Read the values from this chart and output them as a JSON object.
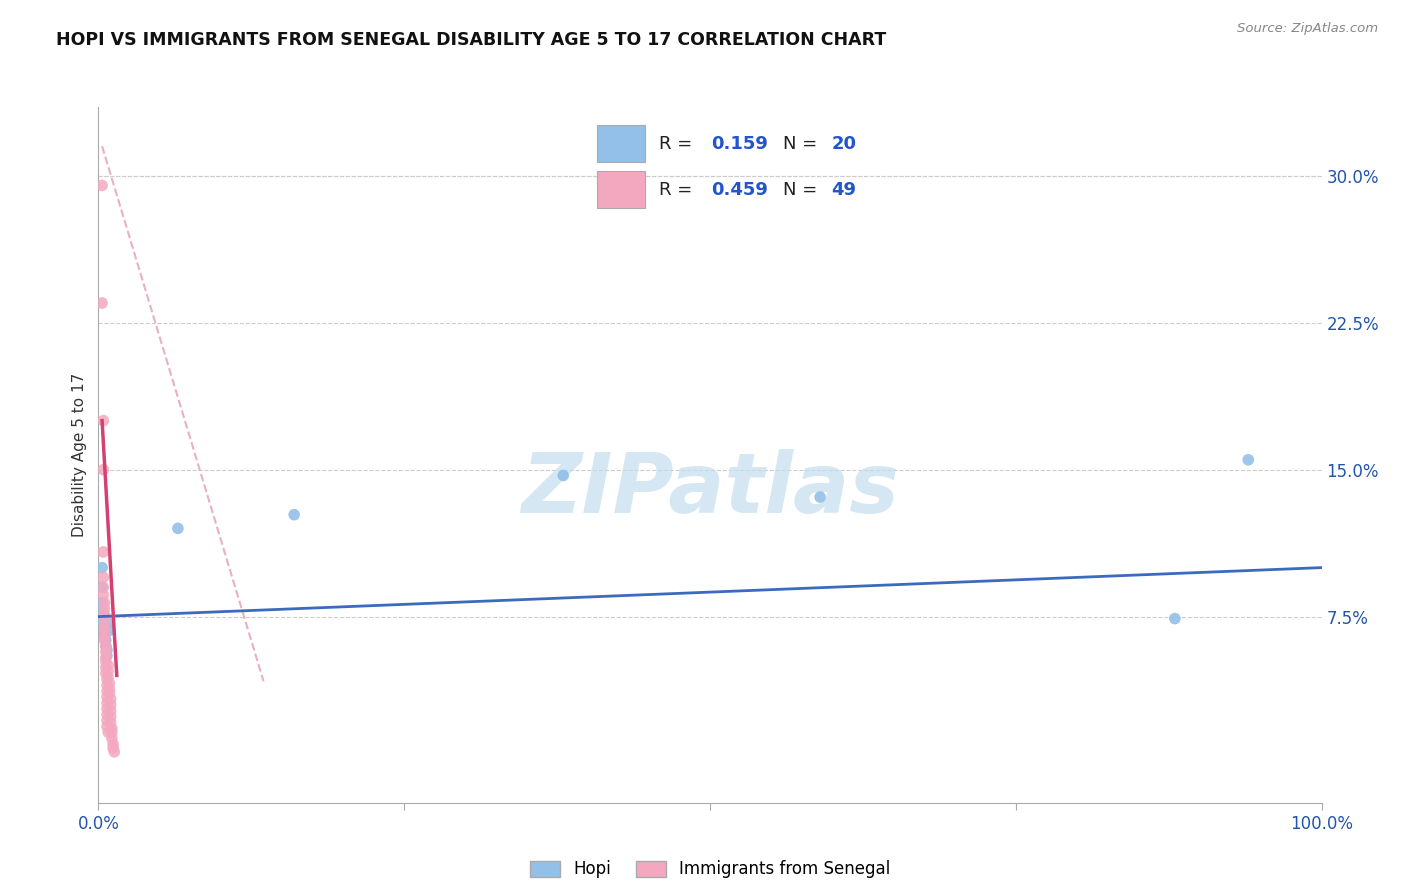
{
  "title": "HOPI VS IMMIGRANTS FROM SENEGAL DISABILITY AGE 5 TO 17 CORRELATION CHART",
  "source": "Source: ZipAtlas.com",
  "ylabel": "Disability Age 5 to 17",
  "ytick_labels": [
    "7.5%",
    "15.0%",
    "22.5%",
    "30.0%"
  ],
  "ytick_values": [
    0.075,
    0.15,
    0.225,
    0.3
  ],
  "xlim": [
    0.0,
    1.0
  ],
  "ylim": [
    -0.02,
    0.335
  ],
  "legend_hopi_R": "0.159",
  "legend_hopi_N": "20",
  "legend_senegal_R": "0.459",
  "legend_senegal_N": "49",
  "hopi_color": "#92c0e8",
  "senegal_color": "#f4a8c0",
  "hopi_line_color": "#3a6bbf",
  "senegal_line_color": "#d44070",
  "senegal_dash_color": "#e8b0c0",
  "background_color": "#ffffff",
  "grid_color": "#cccccc",
  "hopi_scatter": [
    [
      0.003,
      0.1
    ],
    [
      0.003,
      0.09
    ],
    [
      0.003,
      0.082
    ],
    [
      0.004,
      0.077
    ],
    [
      0.004,
      0.073
    ],
    [
      0.005,
      0.07
    ],
    [
      0.005,
      0.067
    ],
    [
      0.005,
      0.065
    ],
    [
      0.006,
      0.063
    ],
    [
      0.006,
      0.06
    ],
    [
      0.007,
      0.058
    ],
    [
      0.007,
      0.055
    ],
    [
      0.008,
      0.072
    ],
    [
      0.009,
      0.068
    ],
    [
      0.065,
      0.12
    ],
    [
      0.16,
      0.127
    ],
    [
      0.38,
      0.147
    ],
    [
      0.59,
      0.136
    ],
    [
      0.88,
      0.074
    ],
    [
      0.94,
      0.155
    ]
  ],
  "senegal_scatter": [
    [
      0.003,
      0.295
    ],
    [
      0.003,
      0.235
    ],
    [
      0.004,
      0.175
    ],
    [
      0.004,
      0.15
    ],
    [
      0.004,
      0.108
    ],
    [
      0.004,
      0.095
    ],
    [
      0.004,
      0.09
    ],
    [
      0.004,
      0.086
    ],
    [
      0.005,
      0.082
    ],
    [
      0.005,
      0.079
    ],
    [
      0.005,
      0.076
    ],
    [
      0.005,
      0.074
    ],
    [
      0.005,
      0.071
    ],
    [
      0.005,
      0.068
    ],
    [
      0.005,
      0.065
    ],
    [
      0.005,
      0.063
    ],
    [
      0.006,
      0.06
    ],
    [
      0.006,
      0.057
    ],
    [
      0.006,
      0.054
    ],
    [
      0.006,
      0.052
    ],
    [
      0.006,
      0.049
    ],
    [
      0.006,
      0.046
    ],
    [
      0.007,
      0.043
    ],
    [
      0.007,
      0.04
    ],
    [
      0.007,
      0.037
    ],
    [
      0.007,
      0.034
    ],
    [
      0.007,
      0.031
    ],
    [
      0.007,
      0.028
    ],
    [
      0.007,
      0.025
    ],
    [
      0.007,
      0.022
    ],
    [
      0.007,
      0.019
    ],
    [
      0.008,
      0.016
    ],
    [
      0.008,
      0.05
    ],
    [
      0.008,
      0.047
    ],
    [
      0.008,
      0.044
    ],
    [
      0.009,
      0.041
    ],
    [
      0.009,
      0.038
    ],
    [
      0.009,
      0.036
    ],
    [
      0.01,
      0.033
    ],
    [
      0.01,
      0.03
    ],
    [
      0.01,
      0.027
    ],
    [
      0.01,
      0.024
    ],
    [
      0.01,
      0.021
    ],
    [
      0.011,
      0.018
    ],
    [
      0.011,
      0.016
    ],
    [
      0.011,
      0.013
    ],
    [
      0.012,
      0.01
    ],
    [
      0.012,
      0.008
    ],
    [
      0.013,
      0.006
    ]
  ],
  "watermark_text": "ZIPatlas",
  "watermark_color": "#c5ddf0",
  "bottom_legend_labels": [
    "Hopi",
    "Immigrants from Senegal"
  ]
}
